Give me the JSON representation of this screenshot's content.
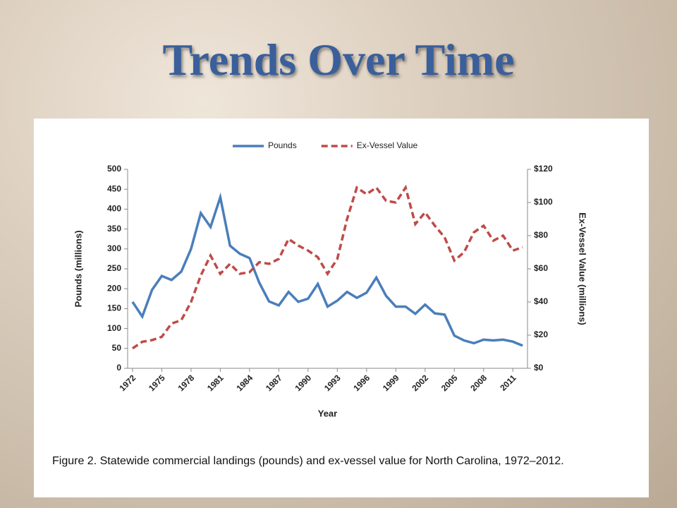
{
  "slide": {
    "title": "Trends Over Time"
  },
  "chart_data": {
    "type": "line",
    "caption": "Figure 2.   Statewide commercial landings (pounds) and ex-vessel value for North Carolina, 1972–2012.",
    "x_label": "Year",
    "y_label": "Pounds (millions)",
    "y2_label": "Ex-Vessel Value (millions)",
    "legend": "top",
    "x": [
      1972,
      1973,
      1974,
      1975,
      1976,
      1977,
      1978,
      1979,
      1980,
      1981,
      1982,
      1983,
      1984,
      1985,
      1986,
      1987,
      1988,
      1989,
      1990,
      1991,
      1992,
      1993,
      1994,
      1995,
      1996,
      1997,
      1998,
      1999,
      2000,
      2001,
      2002,
      2003,
      2004,
      2005,
      2006,
      2007,
      2008,
      2009,
      2010,
      2011,
      2012
    ],
    "xlim": [
      1971.5,
      2012.5
    ],
    "xticks": [
      1972,
      1975,
      1978,
      1981,
      1984,
      1987,
      1990,
      1993,
      1996,
      1999,
      2002,
      2005,
      2008,
      2011
    ],
    "ylim": [
      0,
      500
    ],
    "yticks": [
      0,
      50,
      100,
      150,
      200,
      250,
      300,
      350,
      400,
      450,
      500
    ],
    "y2lim": [
      0,
      120
    ],
    "y2ticks": [
      {
        "value": 0,
        "label": "$0"
      },
      {
        "value": 20,
        "label": "$20"
      },
      {
        "value": 40,
        "label": "$40"
      },
      {
        "value": 60,
        "label": "$60"
      },
      {
        "value": 80,
        "label": "$80"
      },
      {
        "value": 100,
        "label": "$100"
      },
      {
        "value": 120,
        "label": "$120"
      }
    ],
    "series": [
      {
        "name": "Pounds",
        "color": "#4a7ebb",
        "dashed": false,
        "values": [
          167,
          130,
          197,
          232,
          222,
          243,
          300,
          390,
          355,
          430,
          308,
          288,
          277,
          215,
          168,
          158,
          192,
          167,
          175,
          212,
          155,
          170,
          192,
          177,
          190,
          228,
          182,
          155,
          155,
          137,
          160,
          138,
          135,
          82,
          70,
          63,
          72,
          70,
          72,
          67,
          57
        ]
      },
      {
        "name": "Ex-Vessel Value",
        "color": "#be4b48",
        "dashed": true,
        "axis": "y2",
        "values": [
          12,
          16,
          17,
          19,
          27,
          29,
          40,
          56,
          68,
          57,
          63,
          57,
          58,
          64,
          63,
          66,
          78,
          74,
          71,
          67,
          57,
          66,
          90,
          109,
          105,
          109,
          101,
          100,
          109,
          87,
          94,
          86,
          79,
          65,
          70,
          82,
          86,
          77,
          80,
          71,
          73
        ]
      }
    ]
  }
}
